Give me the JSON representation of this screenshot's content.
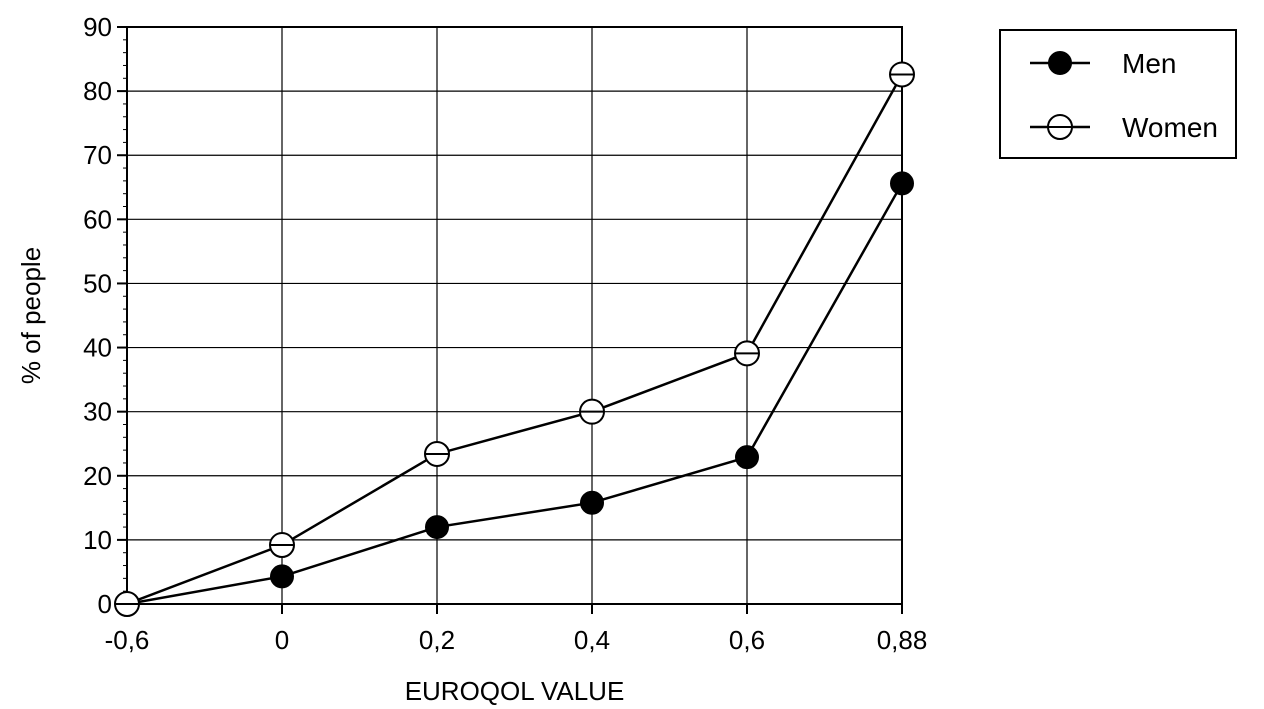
{
  "chart_data": {
    "type": "line",
    "title": "",
    "xlabel": "EUROQOL VALUE",
    "ylabel": "% of people",
    "categories": [
      "-0,6",
      "0",
      "0,2",
      "0,4",
      "0,6",
      "0,88"
    ],
    "ylim": [
      0,
      90
    ],
    "yticks": [
      "0",
      "10",
      "20",
      "30",
      "40",
      "50",
      "60",
      "70",
      "80",
      "90"
    ],
    "grid": true,
    "legend_position": "top-right, outside plot",
    "series": [
      {
        "name": "Men",
        "marker": "filled-circle",
        "values": [
          0,
          4.3,
          12,
          15.8,
          22.9,
          65.6
        ]
      },
      {
        "name": "Women",
        "marker": "open-circle",
        "values": [
          0,
          9.2,
          23.4,
          30,
          39.1,
          82.6
        ]
      }
    ],
    "colors": {
      "line": "#000000",
      "background": "#ffffff"
    }
  }
}
